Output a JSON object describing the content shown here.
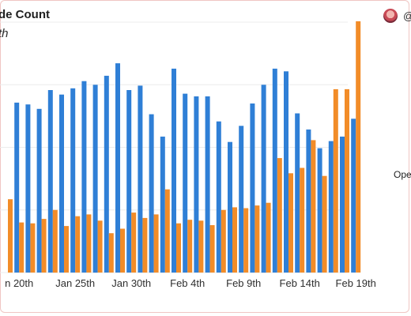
{
  "header": {
    "title": "de Count",
    "subtitle": "th",
    "handle": "@",
    "avatar_icon": "avatar-icon"
  },
  "side_label": "Ope",
  "chart_data": {
    "type": "bar",
    "x_tick_labels": [
      "n 20th",
      "Jan 25th",
      "Jan 30th",
      "Feb 4th",
      "Feb 9th",
      "Feb 14th",
      "Feb 19th"
    ],
    "x_tick_indices": [
      1,
      6,
      11,
      16,
      21,
      26,
      31
    ],
    "ylim": [
      0,
      280
    ],
    "grid": true,
    "series": [
      {
        "color": "#2f7fd6",
        "values": [
          0,
          190,
          188,
          183,
          204,
          199,
          206,
          214,
          210,
          220,
          234,
          204,
          209,
          177,
          152,
          228,
          200,
          197,
          197,
          169,
          146,
          164,
          189,
          210,
          228,
          225,
          178,
          160,
          139,
          147,
          152,
          172
        ]
      },
      {
        "color": "#f28c28",
        "values": [
          82,
          56,
          55,
          60,
          70,
          52,
          63,
          65,
          58,
          44,
          49,
          67,
          61,
          65,
          93,
          55,
          59,
          58,
          53,
          70,
          73,
          72,
          75,
          78,
          128,
          111,
          117,
          148,
          108,
          205,
          205,
          281
        ]
      }
    ]
  }
}
